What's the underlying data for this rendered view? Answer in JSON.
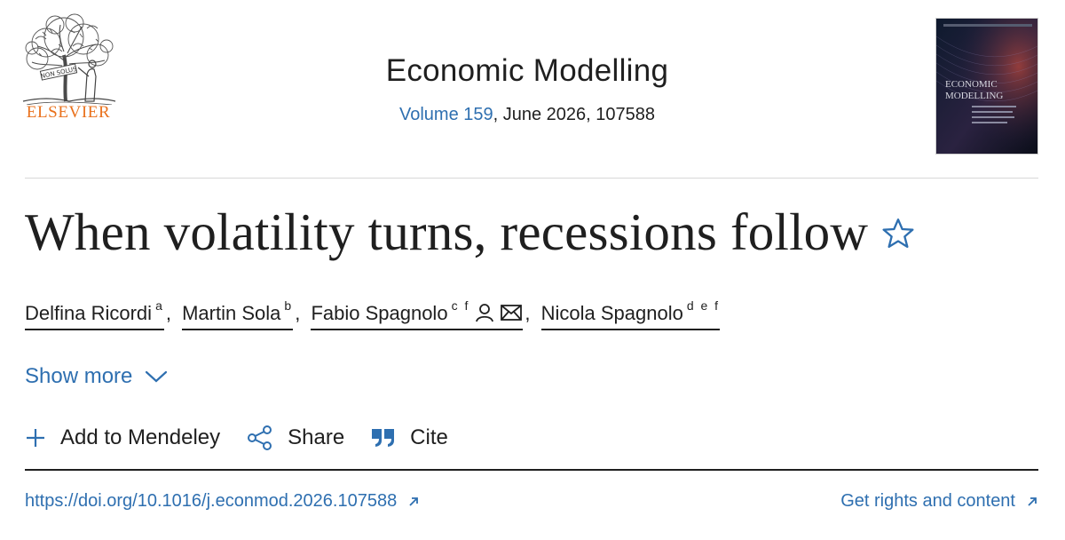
{
  "publisher": {
    "name": "ELSEVIER",
    "logo_motto": "NON SOLUS"
  },
  "journal": {
    "title": "Economic Modelling",
    "volume_label": "Volume 159",
    "issue_rest": ", June 2026, 107588",
    "cover": {
      "title_line1": "ECONOMIC",
      "title_line2": "MODELLING"
    }
  },
  "article": {
    "title": "When volatility turns, recessions follow",
    "authors": [
      {
        "name": "Delfina Ricordi",
        "affil": "a"
      },
      {
        "name": "Martin Sola",
        "affil": "b"
      },
      {
        "name": "Fabio Spagnolo",
        "affil": "c f"
      },
      {
        "name": "Nicola Spagnolo",
        "affil": "d e f"
      }
    ],
    "show_more_label": "Show more"
  },
  "actions": {
    "mendeley_label": "Add to Mendeley",
    "share_label": "Share",
    "cite_label": "Cite"
  },
  "links": {
    "doi": "https://doi.org/10.1016/j.econmod.2026.107588",
    "rights": "Get rights and content"
  },
  "colors": {
    "link": "#2e6fb0",
    "publisher": "#e9711c",
    "text": "#1f1f1f"
  }
}
